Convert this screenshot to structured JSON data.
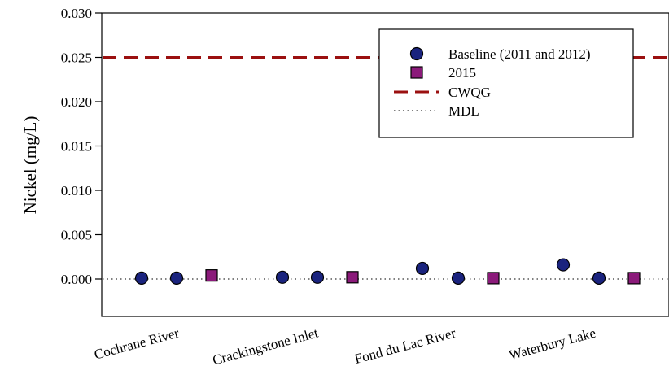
{
  "chart_data": {
    "type": "scatter",
    "ylabel": "Nickel (mg/L)",
    "xlabel": "",
    "ylim": [
      -0.004,
      0.03
    ],
    "yticks": [
      "0.000",
      "0.005",
      "0.010",
      "0.015",
      "0.020",
      "0.025",
      "0.030"
    ],
    "categories": [
      "Cochrane River",
      "Crackingstone Inlet",
      "Fond du Lac River",
      "Waterbury Lake"
    ],
    "grid": false,
    "legend_position": "top-right",
    "series": [
      {
        "name": "Baseline (2011 and 2012)",
        "marker": "circle",
        "color": "#1a237e",
        "points": [
          {
            "category": "Cochrane River",
            "slot": 1,
            "y": 0.0001
          },
          {
            "category": "Cochrane River",
            "slot": 2,
            "y": 0.0001
          },
          {
            "category": "Crackingstone Inlet",
            "slot": 1,
            "y": 0.0002
          },
          {
            "category": "Crackingstone Inlet",
            "slot": 2,
            "y": 0.0002
          },
          {
            "category": "Fond du Lac River",
            "slot": 1,
            "y": 0.0012
          },
          {
            "category": "Fond du Lac River",
            "slot": 2,
            "y": 0.0001
          },
          {
            "category": "Waterbury Lake",
            "slot": 1,
            "y": 0.0016
          },
          {
            "category": "Waterbury Lake",
            "slot": 2,
            "y": 0.0001
          }
        ]
      },
      {
        "name": "2015",
        "marker": "square",
        "color": "#8b1a7a",
        "points": [
          {
            "category": "Cochrane River",
            "slot": 3,
            "y": 0.0004
          },
          {
            "category": "Crackingstone Inlet",
            "slot": 3,
            "y": 0.0002
          },
          {
            "category": "Fond du Lac River",
            "slot": 3,
            "y": 0.0001
          },
          {
            "category": "Waterbury Lake",
            "slot": 3,
            "y": 0.0001
          }
        ]
      }
    ],
    "reference_lines": [
      {
        "name": "CWQG",
        "y": 0.025,
        "style": "dashed",
        "color": "#9b1010"
      },
      {
        "name": "MDL",
        "y": 0.0,
        "style": "dotted",
        "color": "#000000"
      }
    ]
  }
}
